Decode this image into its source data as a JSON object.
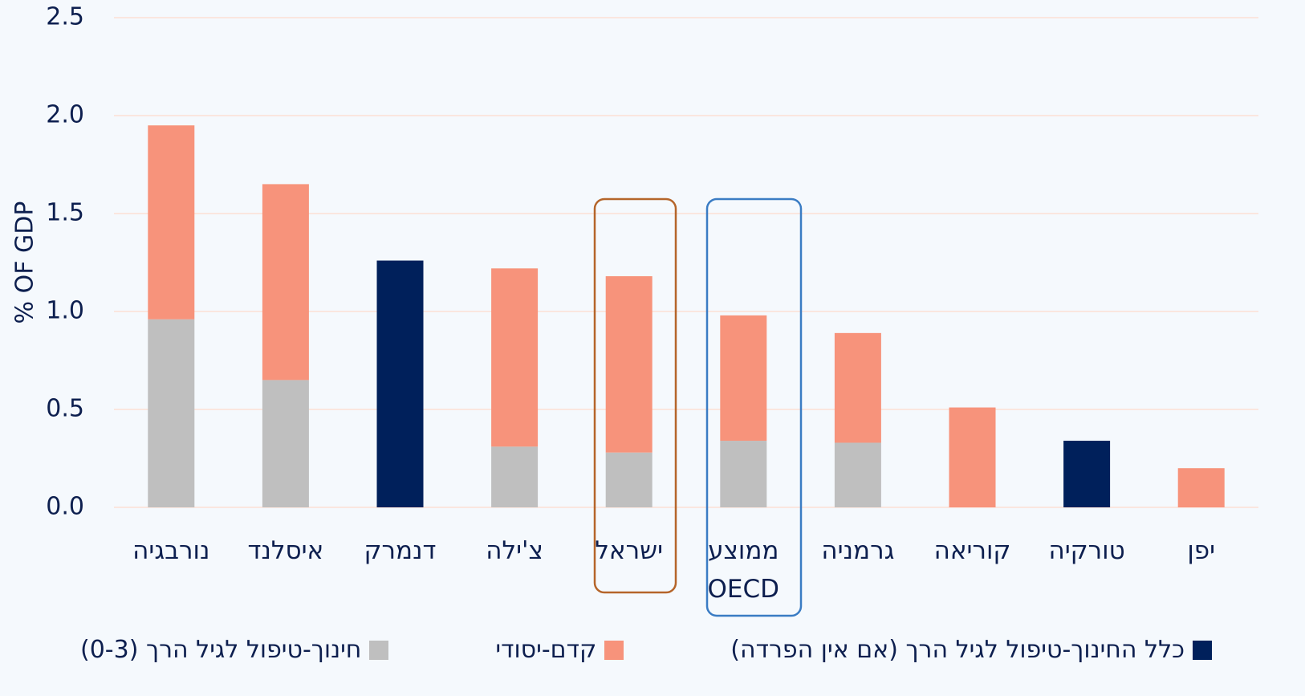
{
  "chart_data": {
    "type": "stacked_bar",
    "y_label": "% OF GDP",
    "categories": [
      "נורבגיה",
      "איסלנד",
      "דנמרק",
      "צ'ילה",
      "ישראל",
      "ממוצע\nOECD",
      "גרמניה",
      "קוריאה",
      "טורקיה",
      "יפן"
    ],
    "series": [
      {
        "name": "חינוך-טיפול לגיל הרך (0-3)",
        "color": "#bfbfbf",
        "values": [
          0.96,
          0.65,
          null,
          0.31,
          0.28,
          0.34,
          0.33,
          null,
          null,
          null
        ]
      },
      {
        "name": "קדם-יסודי",
        "color": "#f7937b",
        "values": [
          0.99,
          1.0,
          null,
          0.91,
          0.9,
          0.64,
          0.56,
          0.51,
          null,
          0.2
        ]
      },
      {
        "name": "כלל החינוך-טיפול לגיל הרך (אם אין הפרדה)",
        "color": "#00205b",
        "values": [
          null,
          null,
          1.26,
          null,
          null,
          null,
          null,
          null,
          0.34,
          null
        ]
      }
    ],
    "ylim": [
      0,
      2.5
    ],
    "yticks": [
      {
        "value": 0,
        "label": "0.0"
      },
      {
        "value": 0.5,
        "label": "0.5"
      },
      {
        "value": 1,
        "label": "1.0"
      },
      {
        "value": 1.5,
        "label": "1.5"
      },
      {
        "value": 2,
        "label": "2.0"
      },
      {
        "value": 2.5,
        "label": "2.5"
      }
    ],
    "grid": true
  }
}
